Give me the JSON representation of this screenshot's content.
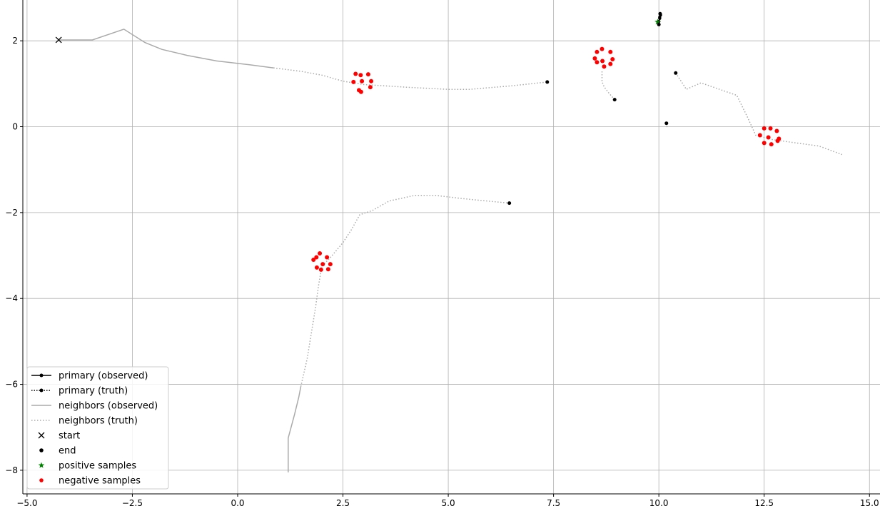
{
  "chart_data": {
    "type": "line",
    "title": "",
    "xlabel": "",
    "ylabel": "",
    "xlim": [
      -5.1,
      15.25
    ],
    "ylim": [
      -8.55,
      2.95
    ],
    "xticks": [
      -5.0,
      -2.5,
      0.0,
      2.5,
      5.0,
      7.5,
      10.0,
      12.5,
      15.0
    ],
    "xtick_labels": [
      "−5.0",
      "−2.5",
      "0.0",
      "2.5",
      "5.0",
      "7.5",
      "10.0",
      "12.5",
      "15.0"
    ],
    "yticks": [
      -8,
      -6,
      -4,
      -2,
      0,
      2
    ],
    "ytick_labels": [
      "−8",
      "−6",
      "−4",
      "−2",
      "0",
      "2"
    ],
    "grid": true,
    "legend_position": "lower-left",
    "legend": [
      {
        "label": "primary (observed)",
        "style": "solid-line-dot",
        "color": "#000000"
      },
      {
        "label": "primary (truth)",
        "style": "dotted-line-dot",
        "color": "#000000"
      },
      {
        "label": "neighbors (observed)",
        "style": "solid-line",
        "color": "#aaaaaa"
      },
      {
        "label": "neighbors (truth)",
        "style": "dotted-line",
        "color": "#aaaaaa"
      },
      {
        "label": "start",
        "style": "x-marker",
        "color": "#000000"
      },
      {
        "label": "end",
        "style": "dot-marker",
        "color": "#000000"
      },
      {
        "label": "positive samples",
        "style": "star-marker",
        "color": "#008000"
      },
      {
        "label": "negative samples",
        "style": "dot-marker",
        "color": "#ff0000"
      }
    ],
    "colors": {
      "neighbor": "#aaaaaa",
      "primary": "#000000",
      "negative": "#ff0000",
      "positive": "#008000",
      "grid": "#b0b0b0"
    },
    "primary_observed": [
      [
        10.0,
        2.38
      ],
      [
        10.0,
        2.45
      ],
      [
        10.02,
        2.52
      ],
      [
        10.04,
        2.6
      ]
    ],
    "primary_truth": [
      [
        10.02,
        2.55
      ],
      [
        10.03,
        2.63
      ]
    ],
    "neighbors_observed": [
      [
        [
          -4.25,
          2.02
        ],
        [
          -3.45,
          2.02
        ],
        [
          -2.7,
          2.27
        ],
        [
          -2.2,
          1.96
        ],
        [
          -1.8,
          1.8
        ],
        [
          -1.2,
          1.66
        ],
        [
          -0.5,
          1.53
        ],
        [
          0.3,
          1.44
        ],
        [
          0.85,
          1.37
        ]
      ],
      [
        [
          1.2,
          -8.05
        ],
        [
          1.2,
          -7.25
        ],
        [
          1.35,
          -6.7
        ],
        [
          1.45,
          -6.3
        ],
        [
          1.5,
          -6.05
        ]
      ]
    ],
    "neighbors_truth": [
      [
        [
          0.85,
          1.37
        ],
        [
          1.5,
          1.29
        ],
        [
          2.0,
          1.2
        ],
        [
          2.5,
          1.06
        ],
        [
          3.0,
          0.98
        ],
        [
          4.0,
          0.92
        ],
        [
          5.0,
          0.87
        ],
        [
          5.5,
          0.87
        ],
        [
          6.5,
          0.95
        ],
        [
          7.35,
          1.04
        ]
      ],
      [
        [
          1.5,
          -6.05
        ],
        [
          1.65,
          -5.4
        ],
        [
          1.75,
          -4.8
        ],
        [
          1.85,
          -4.2
        ],
        [
          1.92,
          -3.7
        ],
        [
          2.0,
          -3.25
        ],
        [
          2.2,
          -3.05
        ],
        [
          2.5,
          -2.7
        ],
        [
          2.7,
          -2.4
        ],
        [
          2.9,
          -2.05
        ],
        [
          3.2,
          -1.95
        ],
        [
          3.6,
          -1.73
        ],
        [
          4.2,
          -1.6
        ],
        [
          4.7,
          -1.6
        ],
        [
          5.3,
          -1.67
        ],
        [
          5.8,
          -1.72
        ],
        [
          6.45,
          -1.78
        ]
      ],
      [
        [
          8.95,
          0.63
        ],
        [
          8.8,
          0.8
        ],
        [
          8.7,
          0.93
        ],
        [
          8.65,
          1.05
        ],
        [
          8.65,
          1.3
        ]
      ],
      [
        [
          10.4,
          1.25
        ],
        [
          10.6,
          0.95
        ],
        [
          10.65,
          0.87
        ],
        [
          11.0,
          1.02
        ],
        [
          11.5,
          0.85
        ],
        [
          11.85,
          0.73
        ],
        [
          12.1,
          0.23
        ],
        [
          12.3,
          -0.2
        ],
        [
          12.7,
          -0.3
        ],
        [
          13.2,
          -0.37
        ],
        [
          13.8,
          -0.45
        ],
        [
          14.35,
          -0.65
        ]
      ],
      [
        [
          10.18,
          0.08
        ],
        [
          10.2,
          -0.05
        ]
      ]
    ],
    "starts": [
      [
        -4.25,
        2.02
      ]
    ],
    "ends": [
      [
        7.35,
        1.04
      ],
      [
        6.45,
        -1.78
      ],
      [
        8.95,
        0.63
      ],
      [
        10.4,
        1.25
      ],
      [
        10.18,
        0.08
      ],
      [
        10.03,
        2.63
      ],
      [
        10.0,
        2.38
      ]
    ],
    "positive_samples": [
      [
        9.97,
        2.44
      ]
    ],
    "negative_samples": [
      [
        2.8,
        1.23
      ],
      [
        2.92,
        1.2
      ],
      [
        3.1,
        1.22
      ],
      [
        2.75,
        1.04
      ],
      [
        2.95,
        1.06
      ],
      [
        3.17,
        1.06
      ],
      [
        2.88,
        0.85
      ],
      [
        2.93,
        0.81
      ],
      [
        3.15,
        0.92
      ],
      [
        8.53,
        1.74
      ],
      [
        8.65,
        1.81
      ],
      [
        8.85,
        1.74
      ],
      [
        8.48,
        1.59
      ],
      [
        8.53,
        1.5
      ],
      [
        8.66,
        1.53
      ],
      [
        8.9,
        1.57
      ],
      [
        8.7,
        1.4
      ],
      [
        8.85,
        1.46
      ],
      [
        12.5,
        -0.04
      ],
      [
        12.65,
        -0.04
      ],
      [
        12.8,
        -0.1
      ],
      [
        12.4,
        -0.2
      ],
      [
        12.6,
        -0.25
      ],
      [
        12.85,
        -0.28
      ],
      [
        12.5,
        -0.38
      ],
      [
        12.67,
        -0.41
      ],
      [
        12.82,
        -0.33
      ],
      [
        1.95,
        -2.95
      ],
      [
        1.87,
        -3.04
      ],
      [
        2.12,
        -3.04
      ],
      [
        1.8,
        -3.1
      ],
      [
        2.02,
        -3.2
      ],
      [
        2.2,
        -3.2
      ],
      [
        1.88,
        -3.28
      ],
      [
        1.98,
        -3.33
      ],
      [
        2.15,
        -3.32
      ]
    ]
  }
}
